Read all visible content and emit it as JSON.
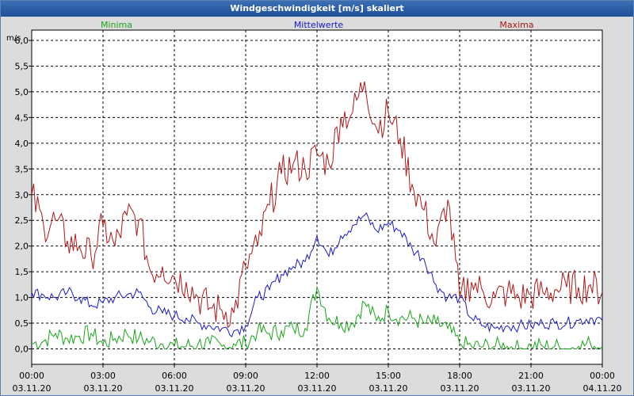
{
  "window": {
    "title": "Windgeschwindigkeit [m/s] skaliert"
  },
  "chart_data": {
    "type": "line",
    "title": "Windgeschwindigkeit [m/s] skaliert",
    "ylabel": "m/s",
    "xlabel": "",
    "ylim": [
      -0.3,
      6.2
    ],
    "xlim": [
      0,
      24
    ],
    "y_ticks": [
      0.0,
      0.5,
      1.0,
      1.5,
      2.0,
      2.5,
      3.0,
      3.5,
      4.0,
      4.5,
      5.0,
      5.5,
      6.0
    ],
    "y_tick_labels": [
      "0,0",
      "0,5",
      "1,0",
      "1,5",
      "2,0",
      "2,5",
      "3,0",
      "3,5",
      "4,0",
      "4,5",
      "5,0",
      "5,5",
      "6,0"
    ],
    "x_ticks": [
      0,
      3,
      6,
      9,
      12,
      15,
      18,
      21,
      24
    ],
    "x_tick_times": [
      "00:00",
      "03:00",
      "06:00",
      "09:00",
      "12:00",
      "15:00",
      "18:00",
      "21:00",
      "00:00"
    ],
    "x_tick_dates": [
      "03.11.20",
      "03.11.20",
      "03.11.20",
      "03.11.20",
      "03.11.20",
      "03.11.20",
      "03.11.20",
      "03.11.20",
      "04.11.20"
    ],
    "grid": true,
    "legend_position": "top",
    "series": [
      {
        "name": "Minima",
        "color": "#1aa51a",
        "x": [
          0,
          0.5,
          1,
          1.5,
          2,
          2.5,
          3,
          3.5,
          4,
          4.5,
          5,
          5.5,
          6,
          6.5,
          7,
          7.5,
          8,
          8.5,
          9,
          9.5,
          10,
          10.5,
          11,
          11.5,
          12,
          12.5,
          13,
          13.5,
          14,
          14.5,
          15,
          15.5,
          16,
          16.5,
          17,
          17.5,
          18,
          18.5,
          19,
          19.5,
          20,
          20.5,
          21,
          21.5,
          22,
          22.5,
          23,
          23.5,
          24
        ],
        "values": [
          0.1,
          0.15,
          0.3,
          0.2,
          0.25,
          0.3,
          0.1,
          0.2,
          0.3,
          0.2,
          0.15,
          0.1,
          0.05,
          0.05,
          0.1,
          0.1,
          0.05,
          0.1,
          0.1,
          0.35,
          0.3,
          0.35,
          0.4,
          0.4,
          1.2,
          0.6,
          0.5,
          0.5,
          0.9,
          0.55,
          0.75,
          0.6,
          0.6,
          0.5,
          0.5,
          0.4,
          0.1,
          0.05,
          0.05,
          0.05,
          0.05,
          0.0,
          0.05,
          0.05,
          0.05,
          0.0,
          0.05,
          0.1,
          0.05
        ]
      },
      {
        "name": "Mittelwerte",
        "color": "#1a1ac8",
        "x": [
          0,
          0.5,
          1,
          1.5,
          2,
          2.5,
          3,
          3.5,
          4,
          4.5,
          5,
          5.5,
          6,
          6.5,
          7,
          7.5,
          8,
          8.5,
          9,
          9.5,
          10,
          10.5,
          11,
          11.5,
          12,
          12.5,
          13,
          13.5,
          14,
          14.5,
          15,
          15.5,
          16,
          16.5,
          17,
          17.5,
          18,
          18.5,
          19,
          19.5,
          20,
          20.5,
          21,
          21.5,
          22,
          22.5,
          23,
          23.5,
          24
        ],
        "values": [
          1.1,
          1.05,
          1.0,
          1.1,
          1.0,
          0.85,
          0.9,
          1.0,
          1.05,
          1.1,
          0.8,
          0.7,
          0.65,
          0.6,
          0.5,
          0.45,
          0.4,
          0.35,
          0.45,
          1.0,
          1.15,
          1.45,
          1.6,
          1.7,
          2.2,
          1.8,
          2.2,
          2.4,
          2.6,
          2.3,
          2.45,
          2.3,
          1.95,
          1.75,
          1.25,
          1.0,
          1.0,
          0.6,
          0.45,
          0.4,
          0.45,
          0.45,
          0.45,
          0.5,
          0.5,
          0.5,
          0.55,
          0.6,
          0.55
        ]
      },
      {
        "name": "Maxima",
        "color": "#b01818",
        "x": [
          0,
          0.5,
          1,
          1.5,
          2,
          2.5,
          3,
          3.5,
          4,
          4.5,
          5,
          5.5,
          6,
          6.5,
          7,
          7.5,
          8,
          8.5,
          9,
          9.5,
          10,
          10.5,
          11,
          11.5,
          12,
          12.5,
          13,
          13.5,
          14,
          14.5,
          15,
          15.5,
          16,
          16.5,
          17,
          17.5,
          18,
          18.5,
          19,
          19.5,
          20,
          20.5,
          21,
          21.5,
          22,
          22.5,
          23,
          23.5,
          24
        ],
        "values": [
          3.0,
          2.4,
          2.5,
          2.1,
          2.0,
          1.8,
          2.4,
          2.0,
          2.6,
          2.5,
          1.5,
          1.6,
          1.4,
          1.3,
          1.0,
          0.8,
          0.75,
          0.7,
          1.6,
          2.0,
          2.8,
          3.4,
          3.6,
          3.5,
          3.8,
          3.6,
          4.5,
          4.6,
          5.2,
          4.3,
          4.6,
          4.1,
          3.2,
          2.7,
          2.0,
          2.9,
          1.0,
          1.3,
          1.1,
          1.0,
          1.1,
          1.0,
          1.05,
          1.1,
          1.15,
          1.2,
          1.2,
          1.25,
          1.1
        ]
      }
    ]
  }
}
